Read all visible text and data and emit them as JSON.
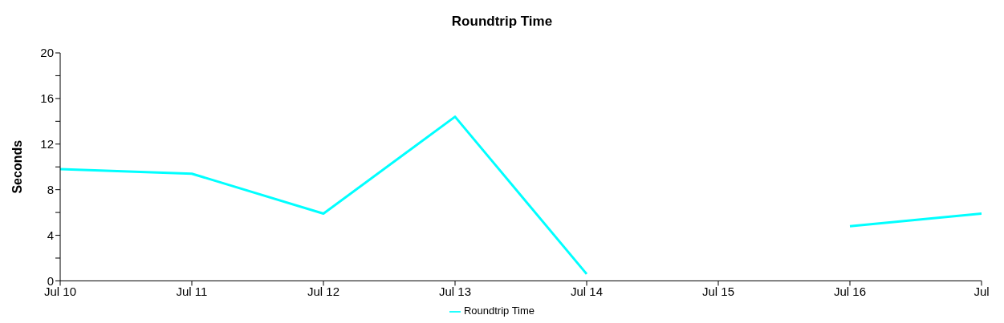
{
  "chart_data": {
    "type": "line",
    "title": "Roundtrip Time",
    "ylabel": "Seconds",
    "categories": [
      "Jul 10",
      "Jul 11",
      "Jul 12",
      "Jul 13",
      "Jul 14",
      "Jul 15",
      "Jul 16",
      "Jul"
    ],
    "series": [
      {
        "name": "Roundtrip Time",
        "color": "#00ffff",
        "values": [
          9.8,
          9.4,
          5.9,
          14.4,
          0.6,
          null,
          4.8,
          5.9
        ]
      }
    ],
    "ylim": [
      0,
      20
    ],
    "yticks": [
      0,
      {
        "value": 2,
        "label": null
      },
      4,
      {
        "value": 6,
        "label": null
      },
      8,
      {
        "value": 10,
        "label": null
      },
      12,
      {
        "value": 14,
        "label": null
      },
      16,
      {
        "value": 18,
        "label": null
      },
      20
    ],
    "grid": false,
    "legend": "bottom",
    "marker": "none",
    "line_style": "solid"
  }
}
